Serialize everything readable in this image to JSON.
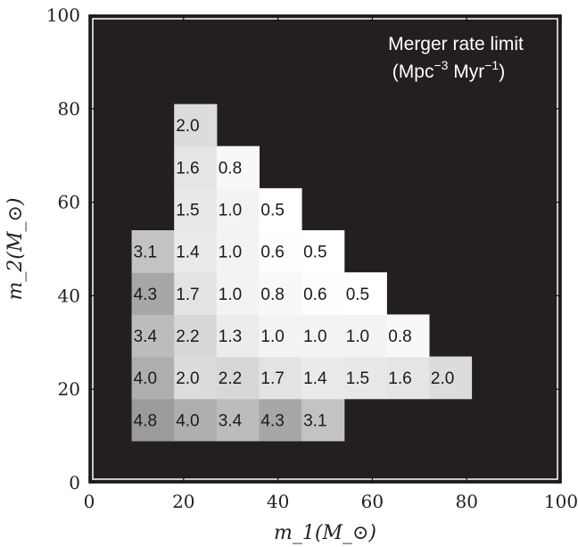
{
  "chart_data": {
    "type": "heatmap",
    "title": "",
    "xlabel": "m_1(M_⊙)",
    "ylabel": "m_2(M_⊙)",
    "xlim": [
      0,
      100
    ],
    "ylim": [
      0,
      100
    ],
    "xticks": [
      "0",
      "20",
      "40",
      "60",
      "80",
      "100"
    ],
    "yticks": [
      "0",
      "20",
      "40",
      "60",
      "80",
      "100"
    ],
    "annotation": {
      "line1": "Merger rate limit",
      "line2_prefix": "(Mpc",
      "line2_exp1": "−3",
      "line2_mid": " Myr",
      "line2_exp2": "−1",
      "line2_suffix": ")"
    },
    "cell_size": 9,
    "colors": {
      "background": "#231f20",
      "label": "#1a1a1a",
      "annotation": "#ffffff"
    },
    "cells": [
      {
        "m1": 13.5,
        "m2": 13.5,
        "value": "4.8"
      },
      {
        "m1": 22.5,
        "m2": 13.5,
        "value": "4.0"
      },
      {
        "m1": 31.5,
        "m2": 13.5,
        "value": "3.4"
      },
      {
        "m1": 40.5,
        "m2": 13.5,
        "value": "4.3"
      },
      {
        "m1": 49.5,
        "m2": 13.5,
        "value": "3.1"
      },
      {
        "m1": 13.5,
        "m2": 22.5,
        "value": "4.0"
      },
      {
        "m1": 22.5,
        "m2": 22.5,
        "value": "2.0"
      },
      {
        "m1": 31.5,
        "m2": 22.5,
        "value": "2.2"
      },
      {
        "m1": 40.5,
        "m2": 22.5,
        "value": "1.7"
      },
      {
        "m1": 49.5,
        "m2": 22.5,
        "value": "1.4"
      },
      {
        "m1": 58.5,
        "m2": 22.5,
        "value": "1.5"
      },
      {
        "m1": 67.5,
        "m2": 22.5,
        "value": "1.6"
      },
      {
        "m1": 76.5,
        "m2": 22.5,
        "value": "2.0"
      },
      {
        "m1": 13.5,
        "m2": 31.5,
        "value": "3.4"
      },
      {
        "m1": 22.5,
        "m2": 31.5,
        "value": "2.2"
      },
      {
        "m1": 31.5,
        "m2": 31.5,
        "value": "1.3"
      },
      {
        "m1": 40.5,
        "m2": 31.5,
        "value": "1.0"
      },
      {
        "m1": 49.5,
        "m2": 31.5,
        "value": "1.0"
      },
      {
        "m1": 58.5,
        "m2": 31.5,
        "value": "1.0"
      },
      {
        "m1": 67.5,
        "m2": 31.5,
        "value": "0.8"
      },
      {
        "m1": 13.5,
        "m2": 40.5,
        "value": "4.3"
      },
      {
        "m1": 22.5,
        "m2": 40.5,
        "value": "1.7"
      },
      {
        "m1": 31.5,
        "m2": 40.5,
        "value": "1.0"
      },
      {
        "m1": 40.5,
        "m2": 40.5,
        "value": "0.8"
      },
      {
        "m1": 49.5,
        "m2": 40.5,
        "value": "0.6"
      },
      {
        "m1": 58.5,
        "m2": 40.5,
        "value": "0.5"
      },
      {
        "m1": 13.5,
        "m2": 49.5,
        "value": "3.1"
      },
      {
        "m1": 22.5,
        "m2": 49.5,
        "value": "1.4"
      },
      {
        "m1": 31.5,
        "m2": 49.5,
        "value": "1.0"
      },
      {
        "m1": 40.5,
        "m2": 49.5,
        "value": "0.6"
      },
      {
        "m1": 49.5,
        "m2": 49.5,
        "value": "0.5"
      },
      {
        "m1": 22.5,
        "m2": 58.5,
        "value": "1.5"
      },
      {
        "m1": 31.5,
        "m2": 58.5,
        "value": "1.0"
      },
      {
        "m1": 40.5,
        "m2": 58.5,
        "value": "0.5"
      },
      {
        "m1": 22.5,
        "m2": 67.5,
        "value": "1.6"
      },
      {
        "m1": 31.5,
        "m2": 67.5,
        "value": "0.8"
      },
      {
        "m1": 22.5,
        "m2": 76.5,
        "value": "2.0"
      }
    ],
    "grid": false,
    "legend": "none"
  }
}
